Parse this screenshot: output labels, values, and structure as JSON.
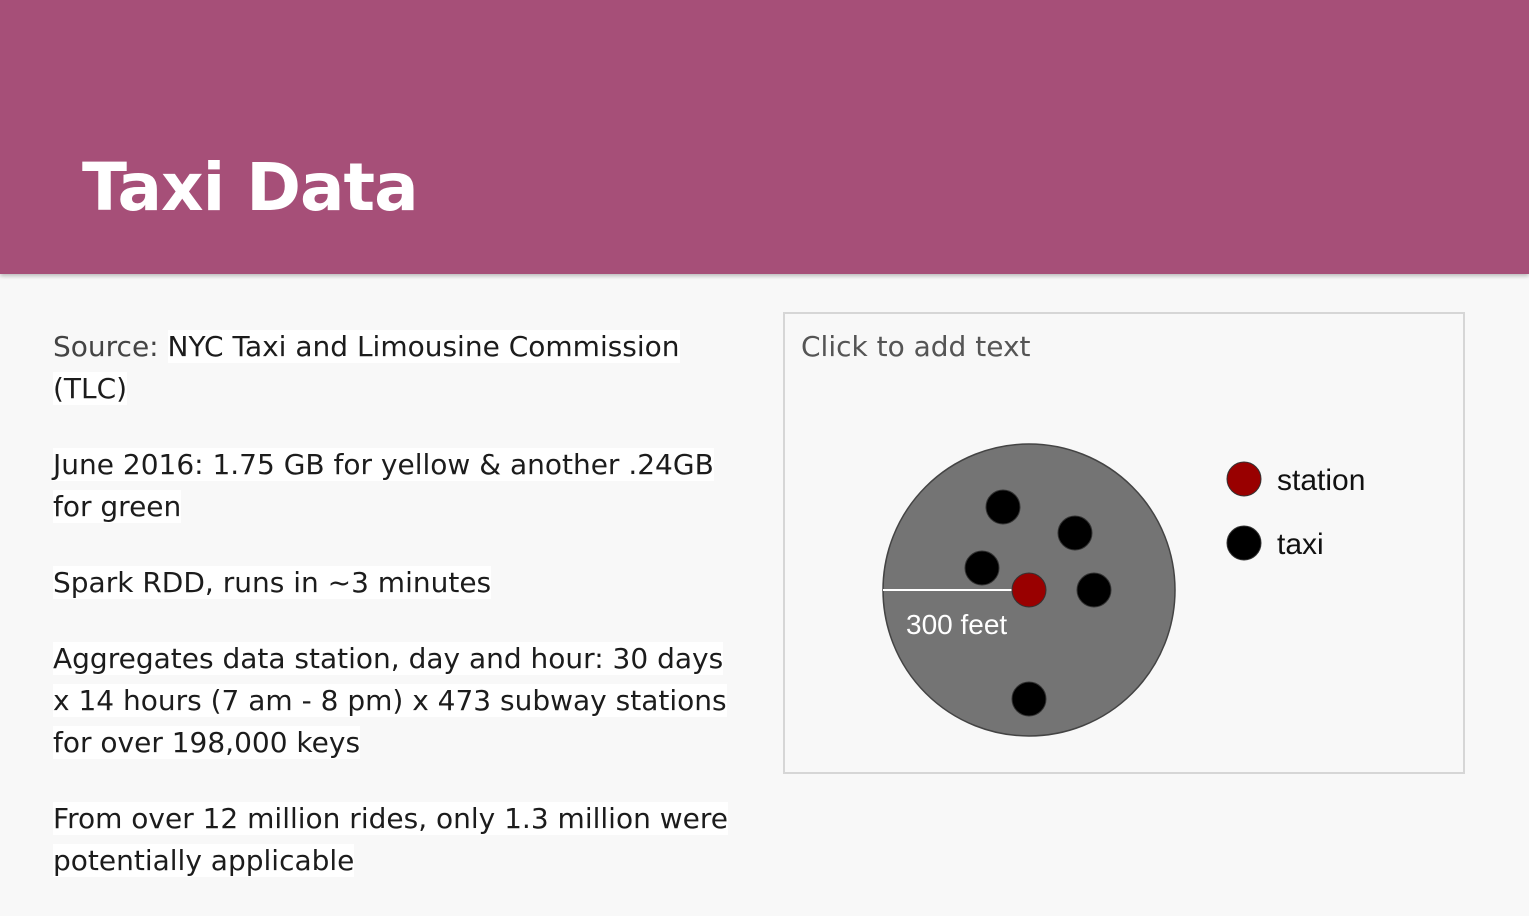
{
  "slide": {
    "title": "Taxi Data",
    "colors": {
      "header": "#a64f78",
      "background": "#f8f8f8"
    }
  },
  "body": {
    "source_label": "Source:",
    "source_value": "NYC Taxi and Limousine Commission (TLC)",
    "p2": "June 2016: 1.75 GB for yellow & another .24GB for green",
    "p3": "Spark RDD, runs in ~3 minutes",
    "p4": "Aggregates data station, day and hour: 30 days x 14 hours (7 am - 8 pm) x 473 subway stations for over 198,000 keys",
    "p5": "From over 12 million rides, only 1.3 million were potentially applicable"
  },
  "placeholder": {
    "text": "Click to add text"
  },
  "diagram": {
    "radius_label": "300 feet",
    "legend": [
      {
        "label": "station",
        "color": "#990000"
      },
      {
        "label": "taxi",
        "color": "#000000"
      }
    ],
    "circle_color": "#747474"
  }
}
